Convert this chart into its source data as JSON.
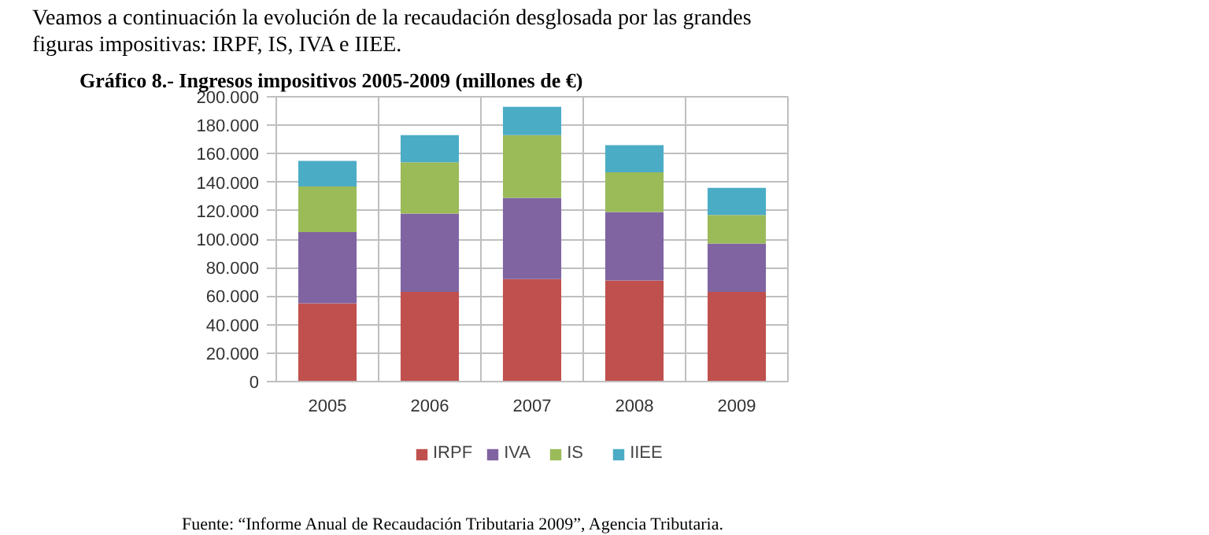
{
  "chart_data": {
    "type": "bar",
    "stacked": true,
    "title": "Gráfico 8.- Ingresos impositivos 2005-2009 (millones de €)",
    "categories": [
      "2005",
      "2006",
      "2007",
      "2008",
      "2009"
    ],
    "series": [
      {
        "name": "IRPF",
        "color": "#c0504d",
        "values": [
          55000,
          63000,
          72000,
          71000,
          63000
        ]
      },
      {
        "name": "IVA",
        "color": "#8064a2",
        "values": [
          50000,
          55000,
          57000,
          48000,
          34000
        ]
      },
      {
        "name": "IS",
        "color": "#9bbb59",
        "values": [
          32000,
          36000,
          44000,
          28000,
          20000
        ]
      },
      {
        "name": "IIEE",
        "color": "#4bacc6",
        "values": [
          18000,
          19000,
          20000,
          19000,
          19000
        ]
      }
    ],
    "ylim": [
      0,
      200000
    ],
    "yticks": [
      0,
      {
        "value": 20000,
        "label": "20.000"
      },
      {
        "value": 40000,
        "label": "40.000"
      },
      {
        "value": 60000,
        "label": "60.000"
      },
      {
        "value": 80000,
        "label": "80.000"
      },
      {
        "value": 100000,
        "label": "100.000"
      },
      {
        "value": 120000,
        "label": "120.000"
      },
      {
        "value": 140000,
        "label": "140.000"
      },
      {
        "value": 160000,
        "label": "160.000"
      },
      {
        "value": 180000,
        "label": "180.000"
      },
      {
        "value": 200000,
        "label": "200.000"
      }
    ],
    "grid": true,
    "legend": "bottom",
    "annotations": [
      "Veamos a continuación la evolución de la recaudación desglosada por las grandes figuras impositivas: IRPF, IS, IVA e IIEE.",
      "Fuente: “Informe Anual de Recaudación Tributaria 2009”, Agencia Tributaria."
    ]
  }
}
